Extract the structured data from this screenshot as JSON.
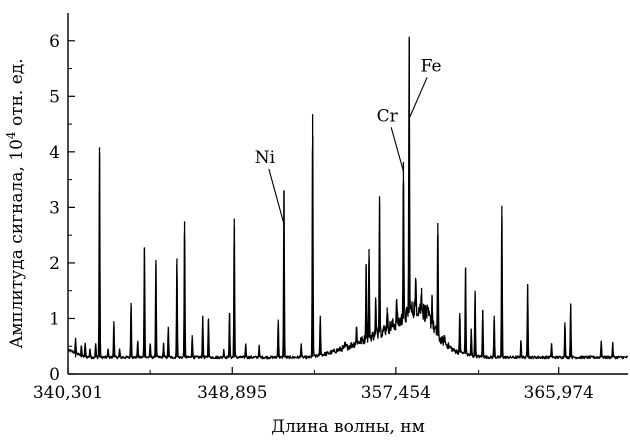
{
  "chart_data": {
    "type": "line",
    "title": "",
    "xlabel": "Длина волны, нм",
    "ylabel": "Амплитуда сигнала, 10⁴ отн. ед.",
    "ylabel_parts": {
      "before": "Амплитуда сигнала, 10",
      "sup": "4",
      "after": " отн. ед."
    },
    "xlim": [
      340.301,
      369.6
    ],
    "ylim": [
      0,
      6.5
    ],
    "x_ticks": [
      340.301,
      348.895,
      357.454,
      365.974
    ],
    "x_tick_labels": [
      "340,301",
      "348,895",
      "357,454",
      "365,974"
    ],
    "y_ticks": [
      0,
      1,
      2,
      3,
      4,
      5,
      6
    ],
    "y_tick_labels": [
      "0",
      "1",
      "2",
      "3",
      "4",
      "5",
      "6"
    ],
    "baseline": 0.3,
    "peaks": [
      {
        "x": 340.7,
        "y": 0.55
      },
      {
        "x": 341.0,
        "y": 0.5
      },
      {
        "x": 341.2,
        "y": 0.55
      },
      {
        "x": 341.45,
        "y": 0.45
      },
      {
        "x": 341.75,
        "y": 0.55
      },
      {
        "x": 341.95,
        "y": 4.08
      },
      {
        "x": 342.4,
        "y": 0.45
      },
      {
        "x": 342.7,
        "y": 0.95
      },
      {
        "x": 343.0,
        "y": 0.45
      },
      {
        "x": 343.6,
        "y": 1.28
      },
      {
        "x": 343.95,
        "y": 0.6
      },
      {
        "x": 344.3,
        "y": 2.28
      },
      {
        "x": 344.6,
        "y": 0.55
      },
      {
        "x": 344.9,
        "y": 2.05
      },
      {
        "x": 345.3,
        "y": 0.55
      },
      {
        "x": 345.55,
        "y": 0.85
      },
      {
        "x": 346.0,
        "y": 2.08
      },
      {
        "x": 346.4,
        "y": 2.75
      },
      {
        "x": 346.8,
        "y": 0.7
      },
      {
        "x": 347.35,
        "y": 1.05
      },
      {
        "x": 347.65,
        "y": 1.0
      },
      {
        "x": 348.45,
        "y": 0.45
      },
      {
        "x": 348.75,
        "y": 1.1
      },
      {
        "x": 349.0,
        "y": 2.8
      },
      {
        "x": 349.6,
        "y": 0.55
      },
      {
        "x": 350.3,
        "y": 0.5
      },
      {
        "x": 351.3,
        "y": 0.98
      },
      {
        "x": 351.6,
        "y": 3.3
      },
      {
        "x": 352.5,
        "y": 0.55
      },
      {
        "x": 353.1,
        "y": 4.68
      },
      {
        "x": 353.5,
        "y": 1.05
      },
      {
        "x": 354.8,
        "y": 0.55
      },
      {
        "x": 355.4,
        "y": 0.85
      },
      {
        "x": 355.9,
        "y": 1.98
      },
      {
        "x": 356.05,
        "y": 2.25
      },
      {
        "x": 356.4,
        "y": 1.35
      },
      {
        "x": 356.6,
        "y": 3.2
      },
      {
        "x": 357.0,
        "y": 1.2
      },
      {
        "x": 357.5,
        "y": 1.35
      },
      {
        "x": 357.85,
        "y": 3.82
      },
      {
        "x": 358.15,
        "y": 6.02
      },
      {
        "x": 358.5,
        "y": 1.65
      },
      {
        "x": 358.8,
        "y": 1.55
      },
      {
        "x": 359.35,
        "y": 1.4
      },
      {
        "x": 359.65,
        "y": 2.72
      },
      {
        "x": 360.0,
        "y": 0.7
      },
      {
        "x": 360.8,
        "y": 1.1
      },
      {
        "x": 361.1,
        "y": 1.9
      },
      {
        "x": 361.4,
        "y": 0.8
      },
      {
        "x": 361.6,
        "y": 1.5
      },
      {
        "x": 362.0,
        "y": 1.15
      },
      {
        "x": 362.6,
        "y": 1.05
      },
      {
        "x": 363.0,
        "y": 3.03
      },
      {
        "x": 364.0,
        "y": 0.6
      },
      {
        "x": 364.35,
        "y": 1.62
      },
      {
        "x": 365.6,
        "y": 0.55
      },
      {
        "x": 366.3,
        "y": 0.93
      },
      {
        "x": 366.6,
        "y": 1.27
      },
      {
        "x": 368.2,
        "y": 0.6
      },
      {
        "x": 368.8,
        "y": 0.55
      }
    ],
    "broad_band": [
      {
        "x": 353.0,
        "y": 0.0
      },
      {
        "x": 354.0,
        "y": 0.08
      },
      {
        "x": 355.0,
        "y": 0.2
      },
      {
        "x": 356.0,
        "y": 0.35
      },
      {
        "x": 357.0,
        "y": 0.52
      },
      {
        "x": 357.8,
        "y": 0.68
      },
      {
        "x": 358.5,
        "y": 0.92
      },
      {
        "x": 359.1,
        "y": 0.78
      },
      {
        "x": 359.7,
        "y": 0.35
      },
      {
        "x": 360.5,
        "y": 0.12
      },
      {
        "x": 361.5,
        "y": 0.02
      },
      {
        "x": 362.5,
        "y": 0.0
      }
    ],
    "annotations": [
      {
        "text": "Ni",
        "target_x": 351.6,
        "target_y": 2.7,
        "label_x": 350.6,
        "label_y": 3.8
      },
      {
        "text": "Cr",
        "target_x": 357.85,
        "target_y": 3.65,
        "label_x": 357.0,
        "label_y": 4.55
      },
      {
        "text": "Fe",
        "target_x": 358.15,
        "target_y": 4.6,
        "label_x": 359.3,
        "label_y": 5.45
      }
    ]
  }
}
